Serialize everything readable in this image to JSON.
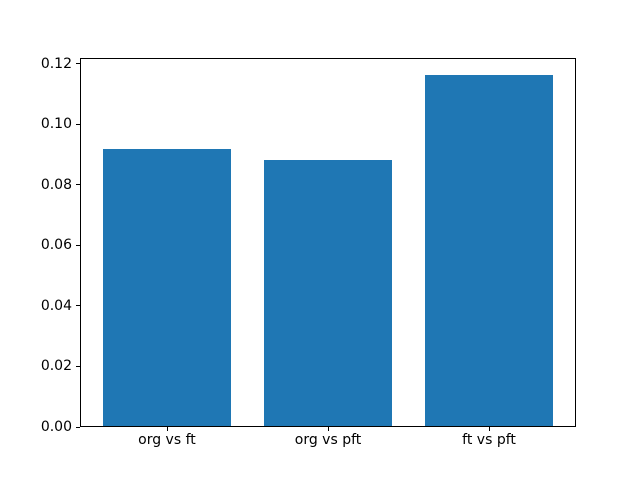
{
  "figure": {
    "background_color": "#ffffff",
    "spine_color": "#000000",
    "text_color": "#000000"
  },
  "chart_data": {
    "type": "bar",
    "title": "",
    "xlabel": "",
    "ylabel": "",
    "categories": [
      "org vs ft",
      "org vs pft",
      "ft vs pft"
    ],
    "values": [
      0.0916,
      0.0878,
      0.1161
    ],
    "bar_color": "#1f77b4",
    "bar_width_fraction": 0.8,
    "xlim": [
      -0.54,
      2.54
    ],
    "ylim": [
      0,
      0.1219
    ],
    "ytick_labels": [
      "0.00",
      "0.02",
      "0.04",
      "0.06",
      "0.08",
      "0.10",
      "0.12"
    ],
    "grid": false,
    "legend": "none"
  }
}
